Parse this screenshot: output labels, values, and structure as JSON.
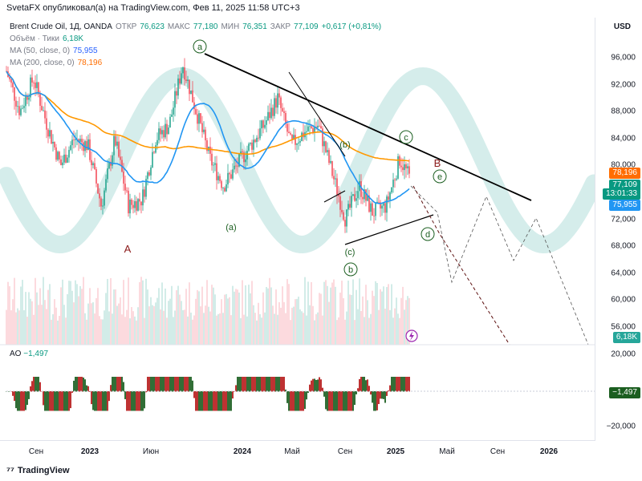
{
  "header": {
    "publisher_line": "SvetaFX опубликовал(а) на TradingView.com, Фев 11, 2025 11:58 UTC+3"
  },
  "legend": {
    "symbol": "Brent Crude Oil, 1Д, OANDA",
    "open_label": "ОТКР",
    "open": "76,623",
    "high_label": "МАКС",
    "high": "77,180",
    "low_label": "МИН",
    "low": "76,351",
    "close_label": "ЗАКР",
    "close": "77,109",
    "change": "+0,617 (+0,81%)",
    "volume_label": "Объём · Тики",
    "volume": "6,18K",
    "ma50_label": "MA (50, close, 0)",
    "ma50": "75,955",
    "ma200_label": "MA (200, close, 0)",
    "ma200": "78,196"
  },
  "ao": {
    "label": "AO",
    "value": "−1,497",
    "axis_ticks": [
      "20,000",
      "−20,000"
    ],
    "tag": "−1,497"
  },
  "price_axis": {
    "currency": "USD",
    "ticks": [
      "96,000",
      "92,000",
      "88,000",
      "84,000",
      "80,000",
      "76,000",
      "72,000",
      "68,000",
      "64,000",
      "60,000",
      "56,000"
    ],
    "tags": {
      "ma200": "78,196",
      "close": "77,109",
      "countdown": "13:01:33",
      "ma50": "75,955",
      "volume": "6,18K"
    }
  },
  "time_axis": {
    "labels": [
      {
        "text": "Сен",
        "year": false
      },
      {
        "text": "2023",
        "year": true
      },
      {
        "text": "Июн",
        "year": false
      },
      {
        "text": "2024",
        "year": true
      },
      {
        "text": "Май",
        "year": false
      },
      {
        "text": "Сен",
        "year": false
      },
      {
        "text": "2025",
        "year": true
      },
      {
        "text": "Май",
        "year": false
      },
      {
        "text": "Сен",
        "year": false
      },
      {
        "text": "2026",
        "year": true
      }
    ]
  },
  "annotations": {
    "wave_a_small": "a",
    "wave_a_paren": "(a)",
    "wave_b_paren": "(b)",
    "wave_c_circle": "c",
    "wave_c_paren": "(c)",
    "wave_b_circle": "b",
    "wave_d_circle": "d",
    "wave_e_circle": "e",
    "big_A": "A",
    "big_B": "B"
  },
  "brand": {
    "name": "TradingView"
  },
  "colors": {
    "up": "#089981",
    "down": "#f23645",
    "ma50": "#2196f3",
    "ma200": "#ff9800",
    "wave_bg": "#b2dfdb",
    "trendline": "#000000",
    "label_green": "#1b5e20",
    "label_red": "#8b1a1a"
  },
  "chart_data": {
    "type": "line",
    "ylim": [
      54000,
      98000
    ],
    "close_series": [
      {
        "date": "2022-08",
        "value": 94000
      },
      {
        "date": "2022-09",
        "value": 88000
      },
      {
        "date": "2022-10",
        "value": 93000
      },
      {
        "date": "2022-11",
        "value": 86000
      },
      {
        "date": "2022-12",
        "value": 80000
      },
      {
        "date": "2023-01",
        "value": 84000
      },
      {
        "date": "2023-02",
        "value": 83000
      },
      {
        "date": "2023-03",
        "value": 74000
      },
      {
        "date": "2023-04",
        "value": 84000
      },
      {
        "date": "2023-05",
        "value": 74000
      },
      {
        "date": "2023-06",
        "value": 75000
      },
      {
        "date": "2023-07",
        "value": 84000
      },
      {
        "date": "2023-08",
        "value": 86000
      },
      {
        "date": "2023-09",
        "value": 95000
      },
      {
        "date": "2023-10",
        "value": 88000
      },
      {
        "date": "2023-11",
        "value": 81000
      },
      {
        "date": "2023-12",
        "value": 77000
      },
      {
        "date": "2024-01",
        "value": 80000
      },
      {
        "date": "2024-02",
        "value": 83000
      },
      {
        "date": "2024-03",
        "value": 86000
      },
      {
        "date": "2024-04",
        "value": 90000
      },
      {
        "date": "2024-05",
        "value": 83000
      },
      {
        "date": "2024-06",
        "value": 85000
      },
      {
        "date": "2024-07",
        "value": 86000
      },
      {
        "date": "2024-08",
        "value": 79000
      },
      {
        "date": "2024-09",
        "value": 72000
      },
      {
        "date": "2024-10",
        "value": 77000
      },
      {
        "date": "2024-11",
        "value": 73000
      },
      {
        "date": "2024-12",
        "value": 74000
      },
      {
        "date": "2025-01",
        "value": 81000
      },
      {
        "date": "2025-02",
        "value": 77109
      }
    ],
    "ma50_last": 75955,
    "ma200_last": 78196,
    "projection": [
      {
        "date": "2025-02",
        "value": 77109
      },
      {
        "date": "2025-03",
        "value": 72000
      },
      {
        "date": "2025-04",
        "value": 63000
      },
      {
        "date": "2025-06",
        "value": 72000
      },
      {
        "date": "2025-08",
        "value": 67000
      },
      {
        "date": "2025-10",
        "value": 76000
      },
      {
        "date": "2025-12",
        "value": 66000
      },
      {
        "date": "2026-02",
        "value": 57000
      }
    ]
  }
}
